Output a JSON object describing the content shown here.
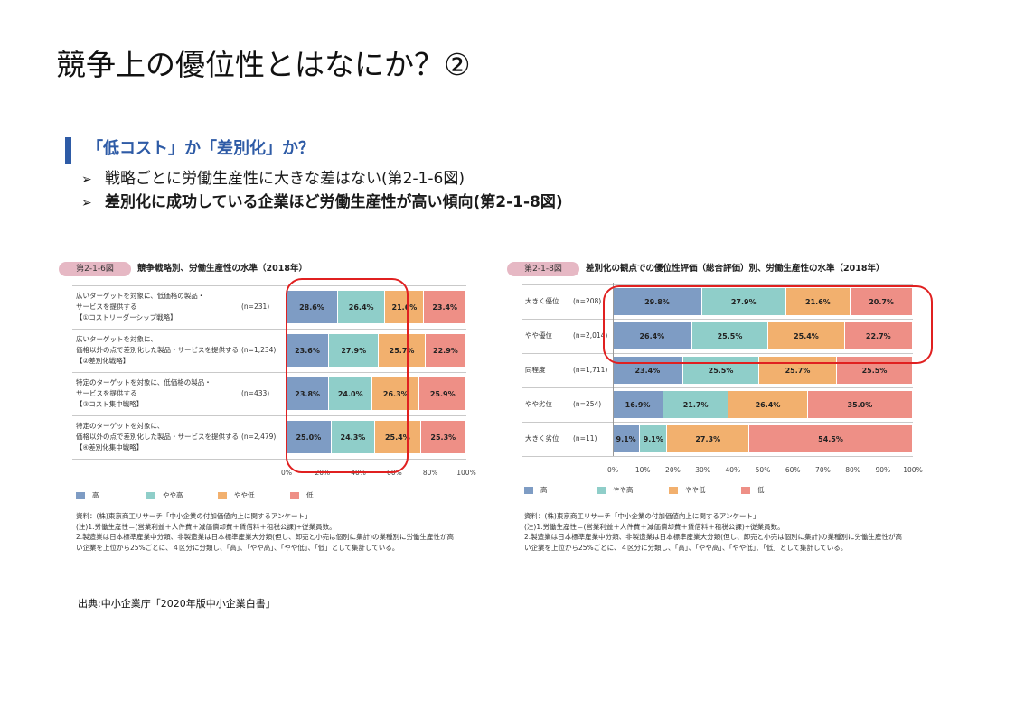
{
  "slide": {
    "title": "競争上の優位性とはなにか？②",
    "section_heading": "「低コスト」か「差別化」か？",
    "bullets": [
      "戦略ごとに労働生産性に大きな差はない(第2-1-6図)",
      "差別化に成功している企業ほど労働生産性が高い傾向(第2-1-8図)"
    ],
    "source": "出典:中小企業庁「2020年版中小企業白書」"
  },
  "colors": {
    "high": "#7e9cc4",
    "mid_high": "#8fcec9",
    "mid_low": "#f2b06e",
    "low": "#ee8f86",
    "accent": "#2e5ba6",
    "highlight": "#e02020"
  },
  "legend": [
    "高",
    "やや高",
    "やや低",
    "低"
  ],
  "axis_ticks": [
    "0%",
    "10%",
    "20%",
    "30%",
    "40%",
    "50%",
    "60%",
    "70%",
    "80%",
    "90%",
    "100%"
  ],
  "chart_data": [
    {
      "type": "bar",
      "orientation": "horizontal-stacked",
      "figure_label": "第2-1-6図",
      "title": "競争戦略別、労働生産性の水準（2018年）",
      "categories": [
        {
          "lines": [
            "広いターゲットを対象に、低価格の製品・",
            "サービスを提供する",
            "【①コストリーダーシップ戦略】"
          ],
          "n": "(n=231)"
        },
        {
          "lines": [
            "広いターゲットを対象に、",
            "価格以外の点で差別化した製品・サービスを提供する",
            "【②差別化戦略】"
          ],
          "n": "(n=1,234)"
        },
        {
          "lines": [
            "特定のターゲットを対象に、低価格の製品・",
            "サービスを提供する",
            "【③コスト集中戦略】"
          ],
          "n": "(n=433)"
        },
        {
          "lines": [
            "特定のターゲットを対象に、",
            "価格以外の点で差別化した製品・サービスを提供する",
            "【④差別化集中戦略】"
          ],
          "n": "(n=2,479)"
        }
      ],
      "series": [
        {
          "name": "高",
          "values": [
            28.6,
            23.6,
            23.8,
            25.0
          ]
        },
        {
          "name": "やや高",
          "values": [
            26.4,
            27.9,
            24.0,
            24.3
          ]
        },
        {
          "name": "やや低",
          "values": [
            21.6,
            25.7,
            26.3,
            25.4
          ]
        },
        {
          "name": "低",
          "values": [
            23.4,
            22.9,
            25.9,
            25.3
          ]
        }
      ],
      "xlim": [
        0,
        100
      ],
      "x_ticks": [
        "0%",
        "20%",
        "40%",
        "60%",
        "80%",
        "100%"
      ],
      "legend_position": "bottom",
      "notes": [
        "資料：(株)東京商工リサーチ「中小企業の付加価値向上に関するアンケート」",
        "(注)1.労働生産性＝(営業利益＋人件費＋減価償却費＋賃借料＋租税公課)÷従業員数。",
        "2.製造業は日本標準産業中分類、非製造業は日本標準産業大分類(但し、卸売と小売は個別に集計)の業種別に労働生産性が高",
        "い企業を上位から25%ごとに、４区分に分類し、「高」、「やや高」、「やや低」、「低」として集計している。"
      ]
    },
    {
      "type": "bar",
      "orientation": "horizontal-stacked",
      "figure_label": "第2-1-8図",
      "title": "差別化の観点での優位性評価（総合評価）別、労働生産性の水準（2018年）",
      "categories": [
        {
          "lines": [
            "大きく優位"
          ],
          "n": "(n=208)"
        },
        {
          "lines": [
            "やや優位"
          ],
          "n": "(n=2,014)"
        },
        {
          "lines": [
            "同程度"
          ],
          "n": "(n=1,711)"
        },
        {
          "lines": [
            "やや劣位"
          ],
          "n": "(n=254)"
        },
        {
          "lines": [
            "大きく劣位"
          ],
          "n": "(n=11)"
        }
      ],
      "series": [
        {
          "name": "高",
          "values": [
            29.8,
            26.4,
            23.4,
            16.9,
            9.1
          ]
        },
        {
          "name": "やや高",
          "values": [
            27.9,
            25.5,
            25.5,
            21.7,
            9.1
          ]
        },
        {
          "name": "やや低",
          "values": [
            21.6,
            25.4,
            25.7,
            26.4,
            27.3
          ]
        },
        {
          "name": "低",
          "values": [
            20.7,
            22.7,
            25.5,
            35.0,
            54.5
          ]
        }
      ],
      "xlim": [
        0,
        100
      ],
      "x_ticks": [
        "0%",
        "10%",
        "20%",
        "30%",
        "40%",
        "50%",
        "60%",
        "70%",
        "80%",
        "90%",
        "100%"
      ],
      "legend_position": "bottom",
      "notes": [
        "資料：(株)東京商工リサーチ「中小企業の付加価値向上に関するアンケート」",
        "(注)1.労働生産性＝(営業利益＋人件費＋減価償却費＋賃借料＋租税公課)÷従業員数。",
        "2.製造業は日本標準産業中分類、非製造業は日本標準産業大分類(但し、卸売と小売は個別に集計)の業種別に労働生産性が高",
        "い企業を上位から25%ごとに、４区分に分類し、「高」、「やや高」、「やや低」、「低」として集計している。"
      ]
    }
  ]
}
